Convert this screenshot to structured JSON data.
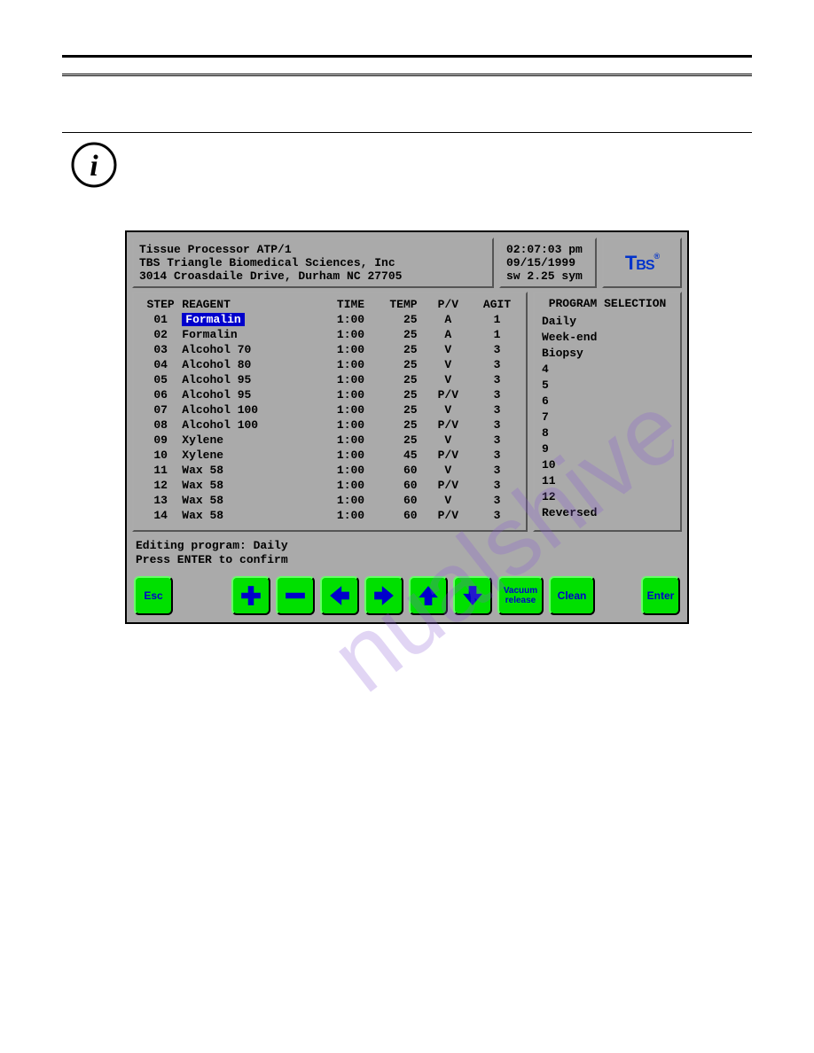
{
  "colors": {
    "screen_bg": "#aaaaaa",
    "button_bg": "#00e000",
    "button_fg": "#0000cc",
    "selected_bg": "#0000cc",
    "selected_fg": "#ffffff",
    "logo_color": "#0033cc",
    "watermark_color": "#8a5bd6"
  },
  "header": {
    "line1": "Tissue Processor ATP/1",
    "line2": "TBS Triangle Biomedical Sciences, Inc",
    "line3": "3014 Croasdaile Drive, Durham NC 27705",
    "time": "02:07:03 pm",
    "date": "09/15/1999",
    "version": "sw 2.25 sym",
    "logo_text": "TBS"
  },
  "table": {
    "columns": [
      "STEP",
      "REAGENT",
      "TIME",
      "TEMP",
      "P/V",
      "AGIT"
    ],
    "selected_row": 0,
    "rows": [
      {
        "step": "01",
        "reagent": "Formalin",
        "time": "1:00",
        "temp": "25",
        "pv": "A",
        "agit": "1"
      },
      {
        "step": "02",
        "reagent": "Formalin",
        "time": "1:00",
        "temp": "25",
        "pv": "A",
        "agit": "1"
      },
      {
        "step": "03",
        "reagent": "Alcohol 70",
        "time": "1:00",
        "temp": "25",
        "pv": "V",
        "agit": "3"
      },
      {
        "step": "04",
        "reagent": "Alcohol 80",
        "time": "1:00",
        "temp": "25",
        "pv": "V",
        "agit": "3"
      },
      {
        "step": "05",
        "reagent": "Alcohol 95",
        "time": "1:00",
        "temp": "25",
        "pv": "V",
        "agit": "3"
      },
      {
        "step": "06",
        "reagent": "Alcohol 95",
        "time": "1:00",
        "temp": "25",
        "pv": "P/V",
        "agit": "3"
      },
      {
        "step": "07",
        "reagent": "Alcohol 100",
        "time": "1:00",
        "temp": "25",
        "pv": "V",
        "agit": "3"
      },
      {
        "step": "08",
        "reagent": "Alcohol 100",
        "time": "1:00",
        "temp": "25",
        "pv": "P/V",
        "agit": "3"
      },
      {
        "step": "09",
        "reagent": "Xylene",
        "time": "1:00",
        "temp": "25",
        "pv": "V",
        "agit": "3"
      },
      {
        "step": "10",
        "reagent": "Xylene",
        "time": "1:00",
        "temp": "45",
        "pv": "P/V",
        "agit": "3"
      },
      {
        "step": "11",
        "reagent": "Wax 58",
        "time": "1:00",
        "temp": "60",
        "pv": "V",
        "agit": "3"
      },
      {
        "step": "12",
        "reagent": "Wax 58",
        "time": "1:00",
        "temp": "60",
        "pv": "P/V",
        "agit": "3"
      },
      {
        "step": "13",
        "reagent": "Wax 58",
        "time": "1:00",
        "temp": "60",
        "pv": "V",
        "agit": "3"
      },
      {
        "step": "14",
        "reagent": "Wax 58",
        "time": "1:00",
        "temp": "60",
        "pv": "P/V",
        "agit": "3"
      }
    ]
  },
  "programs": {
    "title": "PROGRAM SELECTION",
    "items": [
      "Daily",
      "Week-end",
      "Biopsy",
      "4",
      "5",
      "6",
      "7",
      "8",
      "9",
      "10",
      "11",
      "12",
      "Reversed"
    ]
  },
  "status": {
    "line1": "Editing program: Daily",
    "line2": "Press ENTER to confirm"
  },
  "buttons": {
    "esc": "Esc",
    "vacuum_l1": "Vacuum",
    "vacuum_l2": "release",
    "clean": "Clean",
    "enter": "Enter"
  }
}
